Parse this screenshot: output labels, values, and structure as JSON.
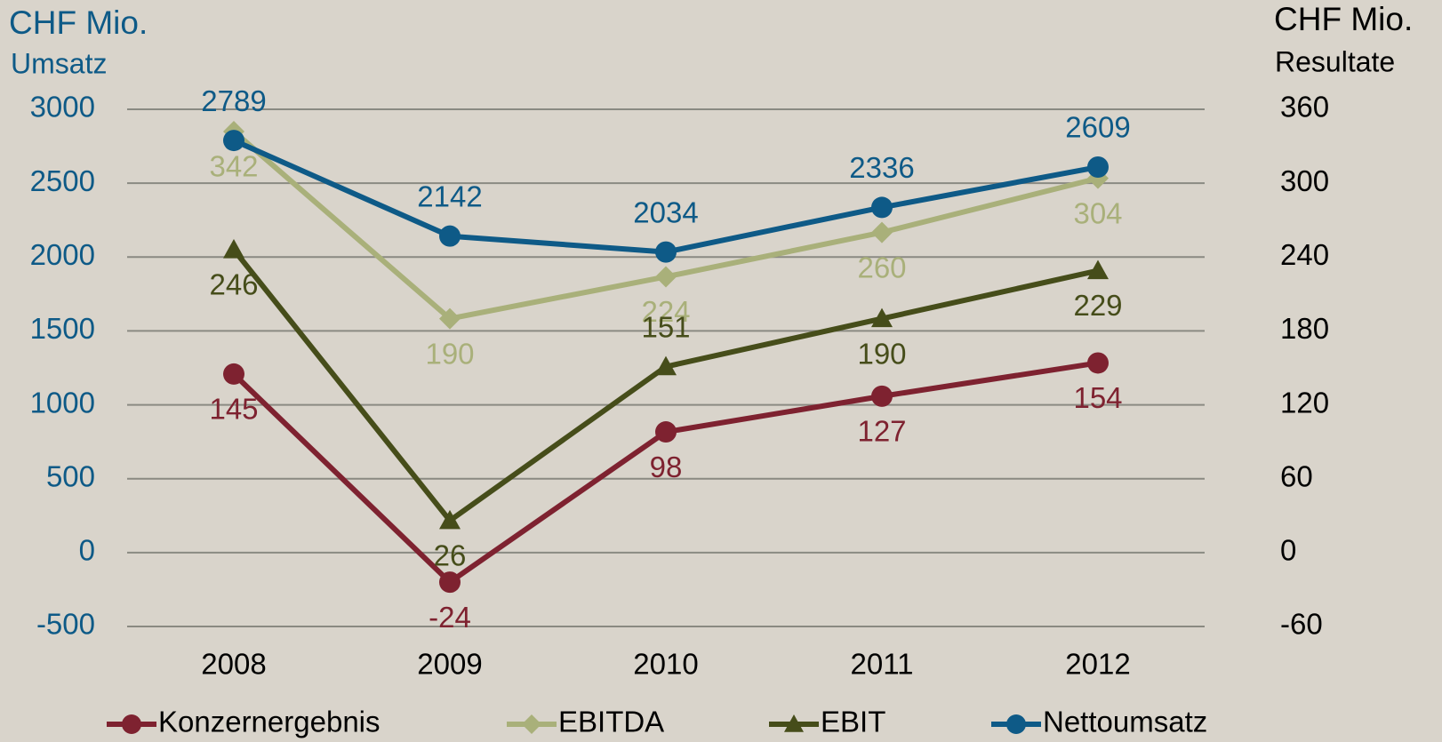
{
  "chart_data": {
    "type": "line",
    "y_title": "CHF Mio.",
    "y_subtitle": "Umsatz",
    "y2_title": "CHF Mio.",
    "y2_subtitle": "Resultate",
    "categories": [
      "2008",
      "2009",
      "2010",
      "2011",
      "2012"
    ],
    "ylim": [
      -500,
      3000
    ],
    "yticks": [
      -500,
      0,
      500,
      1000,
      1500,
      2000,
      2500,
      3000
    ],
    "y2lim": [
      -60,
      360
    ],
    "y2ticks": [
      -60,
      0,
      60,
      120,
      180,
      240,
      300,
      360
    ],
    "grid": true,
    "legend": "bottom",
    "series": [
      {
        "name": "Konzernergebnis",
        "color": "#7e2230",
        "marker": "circle",
        "axis": "y2",
        "values": [
          145,
          -24,
          98,
          127,
          154
        ]
      },
      {
        "name": "EBITDA",
        "color": "#a9b07a",
        "marker": "diamond",
        "axis": "y2",
        "values": [
          342,
          190,
          224,
          260,
          304
        ]
      },
      {
        "name": "EBIT",
        "color": "#464d1a",
        "marker": "triangle",
        "axis": "y2",
        "values": [
          246,
          26,
          151,
          190,
          229
        ]
      },
      {
        "name": "Nettoumsatz",
        "color": "#0e5a87",
        "marker": "circle",
        "axis": "y",
        "values": [
          2789,
          2142,
          2034,
          2336,
          2609
        ]
      }
    ]
  }
}
